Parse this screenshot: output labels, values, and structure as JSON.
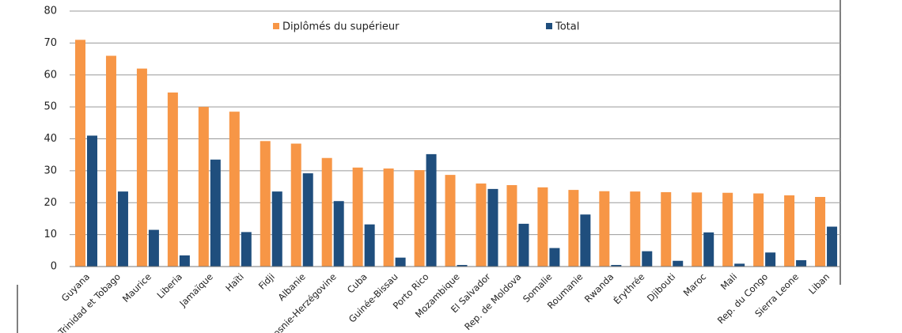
{
  "chart_data": {
    "type": "bar",
    "categories": [
      "Guyana",
      "Trinidad et Tobago",
      "Maurice",
      "Liberia",
      "Jamaïque",
      "Haïti",
      "Fidji",
      "Albanie",
      "Bosnie-Herzégovine",
      "Cuba",
      "Guinée-Bissau",
      "Porto Rico",
      "Mozambique",
      "El Salvador",
      "Rep. de Moldova",
      "Somalie",
      "Roumanie",
      "Rwanda",
      "Érythrée",
      "Djibouti",
      "Maroc",
      "Mali",
      "Rep. du Congo",
      "Sierra Leone",
      "Liban"
    ],
    "series": [
      {
        "name": "Diplômés du supérieur",
        "color": "#f79646",
        "values": [
          71,
          66,
          62,
          54.5,
          50,
          48.5,
          39.3,
          38.5,
          34,
          31,
          30.7,
          30.2,
          28.7,
          26,
          25.5,
          24.8,
          24,
          23.6,
          23.5,
          23.3,
          23.2,
          23.1,
          22.9,
          22.3,
          21.8
        ]
      },
      {
        "name": "Total",
        "color": "#1f4e7d",
        "values": [
          41,
          23.5,
          11.5,
          3.5,
          33.5,
          10.8,
          23.5,
          29.2,
          20.5,
          13.2,
          2.8,
          35.2,
          0.5,
          24.3,
          13.4,
          5.8,
          16.3,
          0.5,
          4.8,
          1.8,
          10.7,
          0.9,
          4.4,
          2,
          12.5
        ]
      }
    ],
    "ylim": [
      0,
      80
    ],
    "yticks": [
      0,
      10,
      20,
      30,
      40,
      50,
      60,
      70,
      80
    ],
    "grid": true,
    "legend": "top"
  }
}
